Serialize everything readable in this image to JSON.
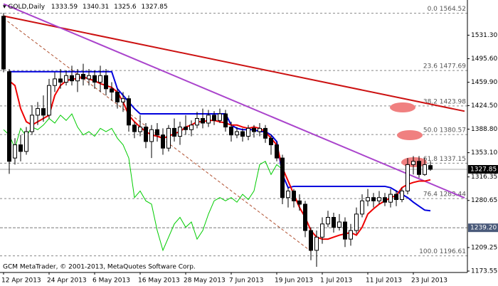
{
  "chart_data": {
    "type": "candlestick",
    "title": "GOLD,Daily",
    "footer": "GCM MetaTrader, © 2001-2013, MetaQuotes Software Corp.",
    "categories": [
      "12 Apr 2013",
      null,
      null,
      null,
      null,
      null,
      null,
      null,
      "24 Apr 2013",
      null,
      null,
      null,
      null,
      null,
      null,
      null,
      "6 May 2013",
      null,
      null,
      null,
      null,
      null,
      null,
      null,
      "16 May 2013",
      null,
      null,
      null,
      null,
      null,
      null,
      null,
      "28 May 2013",
      null,
      null,
      null,
      null,
      null,
      null,
      null,
      "7 Jun 2013",
      null,
      null,
      null,
      null,
      null,
      null,
      null,
      "19 Jun 2013",
      null,
      null,
      null,
      null,
      null,
      null,
      null,
      "1 Jul 2013",
      null,
      null,
      null,
      null,
      null,
      null,
      null,
      "11 Jul 2013",
      null,
      null,
      null,
      null,
      null,
      null,
      null,
      "23 Jul 2013",
      null,
      null,
      null
    ],
    "open": [
      1560,
      1476,
      1345,
      1365,
      1355,
      1385,
      1410,
      1420,
      1410,
      1455,
      1465,
      1460,
      1470,
      1462,
      1472,
      1465,
      1470,
      1460,
      1470,
      1450,
      1445,
      1430,
      1435,
      1395,
      1385,
      1392,
      1370,
      1388,
      1380,
      1360,
      1390,
      1378,
      1392,
      1388,
      1395,
      1405,
      1398,
      1410,
      1402,
      1412,
      1392,
      1380,
      1385,
      1378,
      1390,
      1385,
      1390,
      1375,
      1365,
      1345,
      1285,
      1295,
      1280,
      1275,
      1235,
      1205,
      1225,
      1245,
      1255,
      1240,
      1248,
      1222,
      1235,
      1260,
      1280,
      1285,
      1280,
      1285,
      1278,
      1290,
      1282,
      1295,
      1335,
      1340,
      1320,
      1333.59
    ],
    "high": [
      1565,
      1480,
      1375,
      1380,
      1392,
      1425,
      1430,
      1440,
      1465,
      1475,
      1480,
      1478,
      1485,
      1480,
      1488,
      1480,
      1478,
      1485,
      1480,
      1460,
      1450,
      1445,
      1440,
      1400,
      1410,
      1398,
      1395,
      1398,
      1390,
      1395,
      1405,
      1400,
      1410,
      1402,
      1415,
      1420,
      1418,
      1416,
      1420,
      1418,
      1400,
      1392,
      1390,
      1395,
      1395,
      1398,
      1395,
      1380,
      1370,
      1350,
      1300,
      1298,
      1290,
      1280,
      1240,
      1235,
      1255,
      1265,
      1262,
      1260,
      1255,
      1245,
      1270,
      1290,
      1298,
      1292,
      1295,
      1292,
      1298,
      1296,
      1300,
      1345,
      1348,
      1348,
      1345,
      1340.31
    ],
    "low": [
      1475,
      1321,
      1335,
      1340,
      1350,
      1380,
      1395,
      1400,
      1405,
      1445,
      1450,
      1455,
      1455,
      1445,
      1455,
      1455,
      1450,
      1445,
      1440,
      1432,
      1420,
      1415,
      1385,
      1375,
      1378,
      1360,
      1345,
      1370,
      1350,
      1355,
      1370,
      1365,
      1380,
      1378,
      1390,
      1390,
      1392,
      1395,
      1398,
      1385,
      1370,
      1375,
      1370,
      1372,
      1376,
      1378,
      1368,
      1350,
      1340,
      1275,
      1270,
      1270,
      1265,
      1225,
      1190,
      1180,
      1215,
      1240,
      1232,
      1235,
      1210,
      1212,
      1230,
      1255,
      1272,
      1270,
      1275,
      1272,
      1270,
      1272,
      1278,
      1290,
      1320,
      1315,
      1318,
      1325.6
    ],
    "close": [
      1480,
      1340,
      1365,
      1355,
      1385,
      1410,
      1420,
      1410,
      1455,
      1465,
      1460,
      1470,
      1462,
      1472,
      1465,
      1470,
      1460,
      1470,
      1450,
      1445,
      1430,
      1435,
      1395,
      1385,
      1392,
      1370,
      1388,
      1380,
      1360,
      1390,
      1378,
      1392,
      1388,
      1395,
      1405,
      1398,
      1410,
      1402,
      1412,
      1392,
      1380,
      1385,
      1378,
      1390,
      1385,
      1390,
      1375,
      1365,
      1345,
      1285,
      1295,
      1280,
      1275,
      1235,
      1205,
      1225,
      1245,
      1255,
      1240,
      1248,
      1222,
      1235,
      1260,
      1280,
      1285,
      1280,
      1285,
      1278,
      1290,
      1282,
      1295,
      1335,
      1340,
      1320,
      1335,
      1327.85
    ],
    "lines": [
      {
        "color": "#00cc00",
        "values": [
          1388,
          1380,
          1360,
          1390,
          1378,
          1392,
          1388,
          1395,
          1405,
          1398,
          1410,
          1402,
          1412,
          1392,
          1380,
          1385,
          1378,
          1390,
          1385,
          1390,
          1375,
          1365,
          1345,
          1285,
          1295,
          1280,
          1275,
          1235,
          1205,
          1225,
          1245,
          1255,
          1240,
          1248,
          1222,
          1235,
          1260,
          1280,
          1285,
          1280,
          1285,
          1278,
          1290,
          1282,
          1295,
          1335,
          1340,
          1320,
          1335,
          1327.85,
          null,
          null,
          null,
          null,
          null,
          null,
          null,
          null,
          null,
          null,
          null,
          null,
          null,
          null,
          null,
          null,
          null,
          null,
          null,
          null,
          null,
          null,
          null,
          null,
          null,
          null
        ]
      },
      {
        "color": "#0000dd",
        "values": [
          null,
          1476,
          1476,
          1476,
          1476,
          1476,
          1476,
          1476,
          1476,
          1476,
          1476,
          1476,
          1476,
          1476,
          1476,
          1476,
          1476,
          1476,
          1476,
          1476,
          1450,
          1440,
          1430,
          1420,
          1412,
          1412,
          1412,
          1412,
          1412,
          1412,
          1412,
          1412,
          1412,
          1412,
          1412,
          1412,
          1412,
          1412,
          1412,
          1412,
          1395,
          1390,
          1388,
          1388,
          1388,
          1385,
          1385,
          1380,
          1370,
          1320,
          1300,
          1302,
          1302,
          1302,
          1302,
          1302,
          1302,
          1302,
          1302,
          1302,
          1302,
          1302,
          1302,
          1302,
          1302,
          1302,
          1302,
          1302,
          1300,
          1295,
          1290,
          1285,
          1278,
          1272,
          1266,
          1265
        ]
      },
      {
        "color": "#ee0000",
        "values": [
          null,
          1462,
          1455,
          1420,
          1400,
          1395,
          1400,
          1405,
          1410,
          1440,
          1455,
          1462,
          1465,
          1465,
          1468,
          1465,
          1462,
          1458,
          1455,
          1452,
          1445,
          1430,
          1410,
          1400,
          1392,
          1385,
          1380,
          1378,
          1375,
          1378,
          1382,
          1385,
          1392,
          1395,
          1400,
          1400,
          1402,
          1402,
          1400,
          1398,
          1395,
          1395,
          1392,
          1390,
          1392,
          1390,
          1385,
          1375,
          1365,
          1330,
          1310,
          1290,
          1270,
          1255,
          1235,
          1225,
          1222,
          1222,
          1225,
          1228,
          1230,
          1232,
          1228,
          1240,
          1260,
          1268,
          1275,
          1280,
          1285,
          1288,
          1300,
          1305,
          1308,
          1310,
          1310,
          1312
        ]
      }
    ],
    "trendlines": [
      {
        "color": "#cc1111",
        "dashed": false,
        "x": [
          0,
          81
        ],
        "values": [
          1560.4,
          1416
        ]
      },
      {
        "color": "#aa44cc",
        "dashed": false,
        "x": [
          0,
          81
        ],
        "values": [
          1578.7,
          1284.5
        ]
      },
      {
        "color": "#b05030",
        "dashed": true,
        "x": [
          0,
          54
        ],
        "values": [
          1557,
          1203.7
        ]
      }
    ],
    "fib_levels": [
      {
        "value": 1564.52,
        "label": "0.0 1564.52"
      },
      {
        "value": 1477.69,
        "label": "23.6 1477.69"
      },
      {
        "value": 1423.98,
        "label": "38.2 1423.98"
      },
      {
        "value": 1380.57,
        "label": "50.0 1380.57"
      },
      {
        "value": 1337.15,
        "label": "61.8 1337.15"
      },
      {
        "value": 1283.44,
        "label": "76.4 1283.44"
      },
      {
        "value": 1196.61,
        "label": "100.0 1196.61"
      }
    ],
    "price_level": {
      "value": 1239.2,
      "label": "1239.20"
    },
    "ylim": [
      1171.4,
      1582.5
    ],
    "yticks": [
      {
        "value": 1531.3,
        "label": "1531.30"
      },
      {
        "value": 1495.6,
        "label": "1495.60"
      },
      {
        "value": 1459.9,
        "label": "1459.90"
      },
      {
        "value": 1424.5,
        "label": "1424.50"
      },
      {
        "value": 1388.8,
        "label": "1388.80"
      },
      {
        "value": 1353.1,
        "label": "1353.10"
      },
      {
        "value": 1316.35,
        "label": "1316.35"
      },
      {
        "value": 1280.65,
        "label": "1280.65"
      },
      {
        "value": 1209.25,
        "label": "1209.25"
      },
      {
        "value": 1173.55,
        "label": "1173.55"
      }
    ]
  }
}
